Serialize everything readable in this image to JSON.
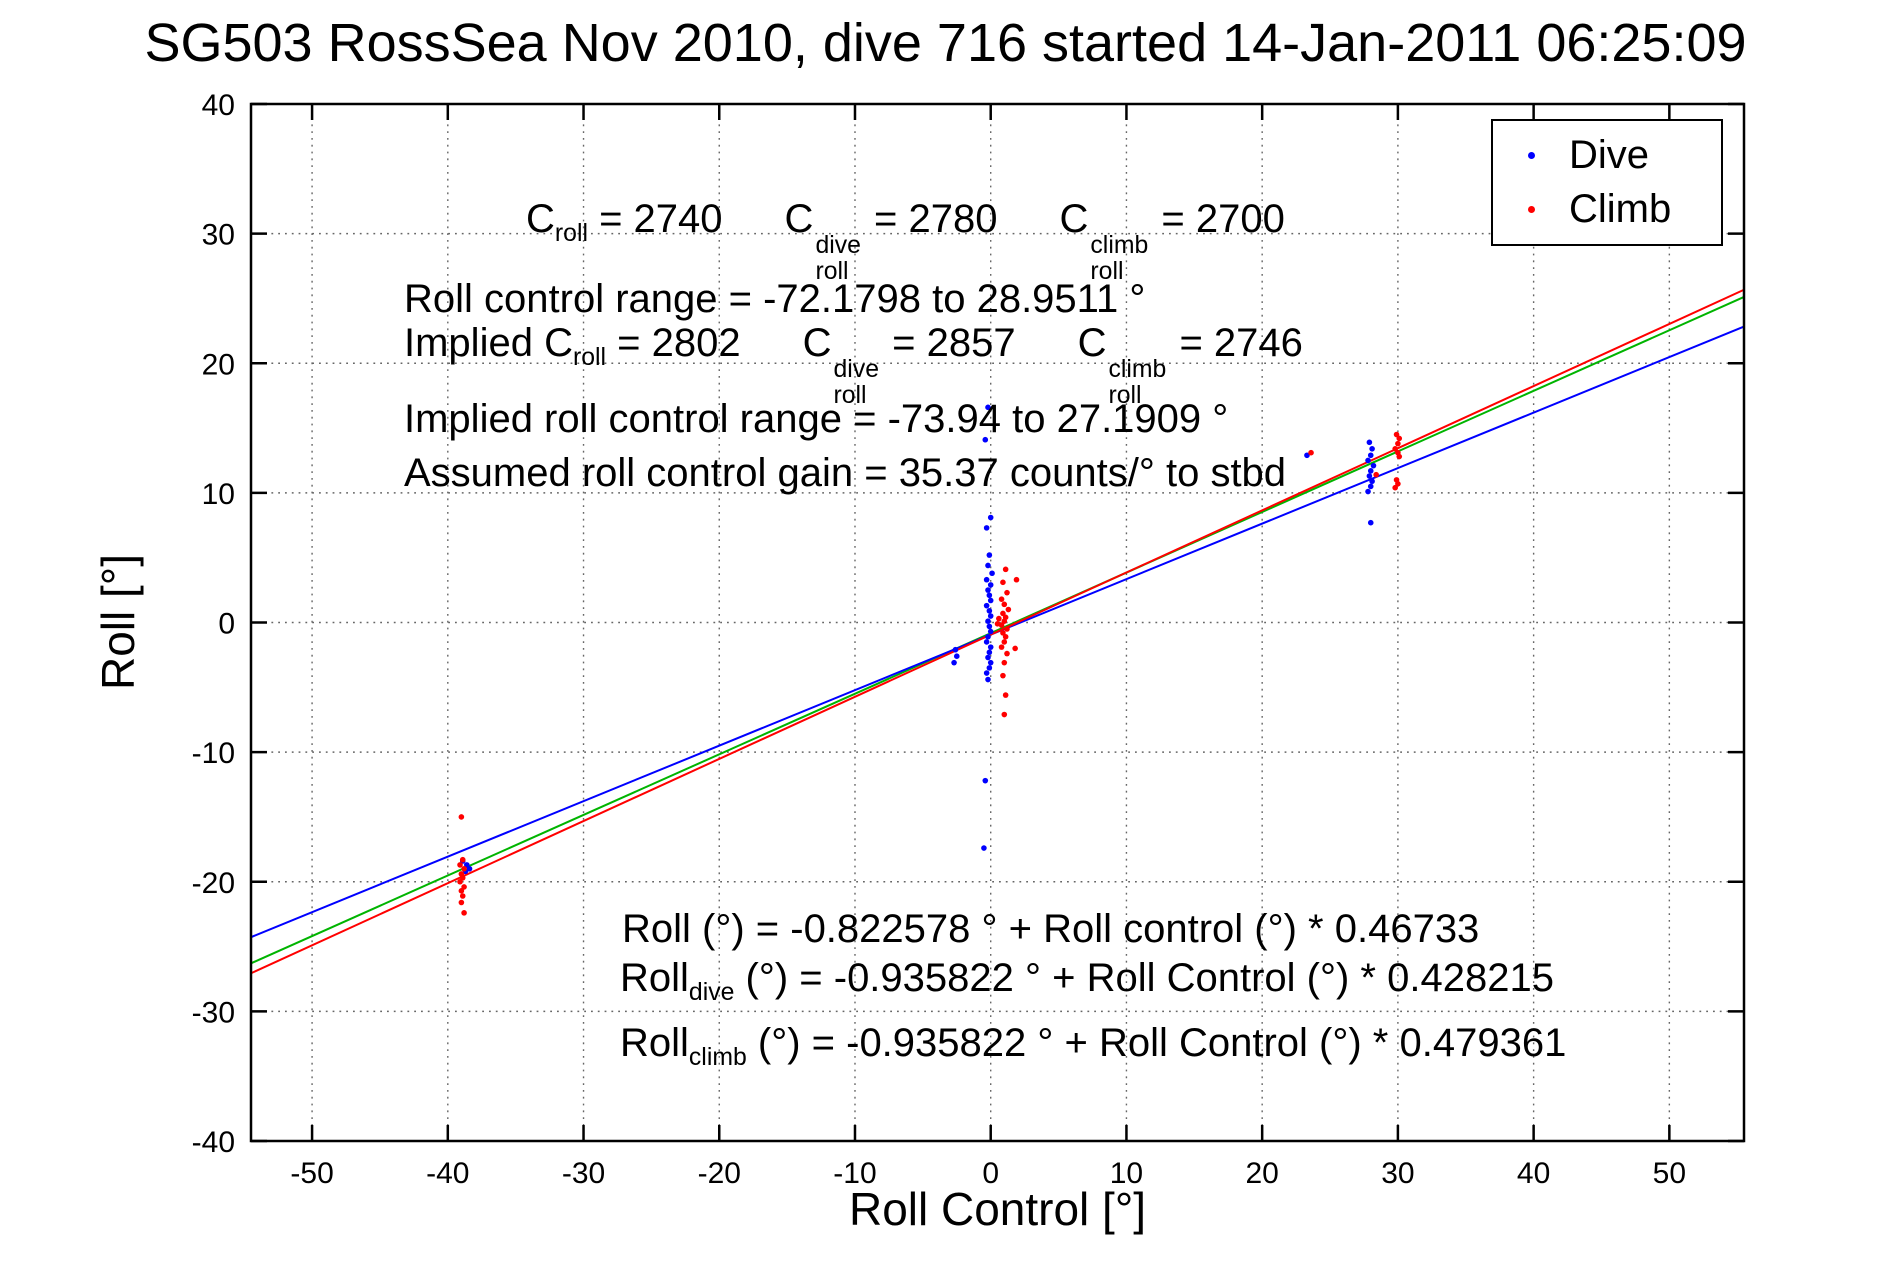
{
  "title": "SG503 RossSea Nov 2010, dive 716 started 14-Jan-2011 06:25:09",
  "legend": {
    "items": [
      {
        "label": "Dive",
        "color": "#0000ff"
      },
      {
        "label": "Climb",
        "color": "#ff0000"
      }
    ]
  },
  "annotations": {
    "c_line": [
      {
        "base": "C",
        "sub": "roll",
        "sup": "",
        "rest": " = 2740"
      },
      {
        "base": "C",
        "sub": "roll",
        "sup": "dive",
        "rest": " = 2780"
      },
      {
        "base": "C",
        "sub": "roll",
        "sup": "climb",
        "rest": " = 2700"
      }
    ],
    "roll_control_range": "Roll control range = -72.1798 to 28.9511 °",
    "implied_prefix": "Implied ",
    "implied_c_line": [
      {
        "base": "C",
        "sub": "roll",
        "sup": "",
        "rest": " = 2802"
      },
      {
        "base": "C",
        "sub": "roll",
        "sup": "dive",
        "rest": " = 2857"
      },
      {
        "base": "C",
        "sub": "roll",
        "sup": "climb",
        "rest": " = 2746"
      }
    ],
    "implied_range": "Implied roll control range = -73.94 to 27.1909 °",
    "gain": "Assumed roll control gain = 35.37 counts/° to stbd",
    "fits": [
      {
        "base": "Roll",
        "sub": "",
        "rest": " (°) = -0.822578 ° + Roll control (°) * 0.46733"
      },
      {
        "base": "Roll",
        "sub": "dive",
        "rest": " (°) = -0.935822 ° + Roll Control (°) * 0.428215"
      },
      {
        "base": "Roll",
        "sub": "climb",
        "rest": " (°) = -0.935822 ° + Roll Control (°) * 0.479361"
      }
    ]
  },
  "chart_data": {
    "type": "scatter",
    "title": "SG503 RossSea Nov 2010, dive 716 started 14-Jan-2011 06:25:09",
    "xlabel": "Roll Control [°]",
    "ylabel": "Roll [°]",
    "xlim": [
      -54.5,
      55.5
    ],
    "ylim": [
      -40,
      40
    ],
    "xticks": [
      -50,
      -40,
      -30,
      -20,
      -10,
      0,
      10,
      20,
      30,
      40,
      50
    ],
    "yticks": [
      -40,
      -30,
      -20,
      -10,
      0,
      10,
      20,
      30,
      40
    ],
    "grid": true,
    "legend_position": "top-right",
    "series": [
      {
        "name": "Dive",
        "color": "#0000ff",
        "points": [
          [
            -38.9,
            -18.4
          ],
          [
            -38.6,
            -18.7
          ],
          [
            -38.4,
            -19.0
          ],
          [
            -38.7,
            -19.2
          ],
          [
            -2.6,
            -2.1
          ],
          [
            -2.5,
            -2.6
          ],
          [
            -2.7,
            -3.1
          ],
          [
            -0.2,
            16.6
          ],
          [
            -0.4,
            14.1
          ],
          [
            0,
            8.1
          ],
          [
            -0.3,
            7.3
          ],
          [
            -0.1,
            5.2
          ],
          [
            -0.2,
            4.4
          ],
          [
            0.1,
            3.8
          ],
          [
            -0.3,
            3.3
          ],
          [
            0,
            2.9
          ],
          [
            -0.2,
            2.5
          ],
          [
            -0.1,
            2.1
          ],
          [
            0,
            1.7
          ],
          [
            -0.3,
            1.3
          ],
          [
            -0.1,
            0.9
          ],
          [
            0,
            0.5
          ],
          [
            -0.2,
            0.1
          ],
          [
            -0.1,
            -0.3
          ],
          [
            0,
            -0.7
          ],
          [
            -0.2,
            -1.1
          ],
          [
            -0.3,
            -1.5
          ],
          [
            0,
            -1.9
          ],
          [
            -0.1,
            -2.3
          ],
          [
            -0.2,
            -2.7
          ],
          [
            0,
            -3.1
          ],
          [
            -0.1,
            -3.5
          ],
          [
            -0.3,
            -3.9
          ],
          [
            -0.2,
            -4.4
          ],
          [
            -0.4,
            -12.2
          ],
          [
            -0.5,
            -17.4
          ],
          [
            23.3,
            12.9
          ],
          [
            27.9,
            13.9
          ],
          [
            28.1,
            13.4
          ],
          [
            28,
            12.9
          ],
          [
            27.8,
            12.5
          ],
          [
            28.2,
            12.1
          ],
          [
            28,
            11.7
          ],
          [
            27.9,
            11.3
          ],
          [
            28.1,
            10.9
          ],
          [
            28,
            10.5
          ],
          [
            27.8,
            10.1
          ],
          [
            28,
            7.7
          ]
        ]
      },
      {
        "name": "Climb",
        "color": "#ff0000",
        "points": [
          [
            -39,
            -15
          ],
          [
            -38.9,
            -18.3
          ],
          [
            -39.1,
            -18.7
          ],
          [
            -38.8,
            -19
          ],
          [
            -39,
            -19.4
          ],
          [
            -38.9,
            -19.7
          ],
          [
            -39.1,
            -20
          ],
          [
            -38.8,
            -20.4
          ],
          [
            -39,
            -20.7
          ],
          [
            -38.9,
            -21.1
          ],
          [
            -39,
            -21.6
          ],
          [
            -38.8,
            -22.4
          ],
          [
            0.5,
            -0.1
          ],
          [
            0.6,
            0.3
          ],
          [
            1.1,
            4.1
          ],
          [
            0.9,
            3.1
          ],
          [
            1.2,
            2.3
          ],
          [
            0.8,
            1.8
          ],
          [
            1,
            1.4
          ],
          [
            1.3,
            1
          ],
          [
            0.9,
            0.7
          ],
          [
            1.1,
            0.4
          ],
          [
            1,
            0.1
          ],
          [
            0.8,
            -0.2
          ],
          [
            1.2,
            -0.5
          ],
          [
            0.9,
            -0.8
          ],
          [
            1.1,
            -1.1
          ],
          [
            1,
            -1.5
          ],
          [
            0.8,
            -1.9
          ],
          [
            1.2,
            -2.4
          ],
          [
            1,
            -3.1
          ],
          [
            0.9,
            -4.1
          ],
          [
            1.1,
            -5.6
          ],
          [
            1,
            -7.1
          ],
          [
            1.9,
            3.3
          ],
          [
            1.8,
            -2
          ],
          [
            23.6,
            13.1
          ],
          [
            29.9,
            14.5
          ],
          [
            30.1,
            14.2
          ],
          [
            30,
            13.8
          ],
          [
            29.8,
            13.4
          ],
          [
            30,
            13.1
          ],
          [
            30.1,
            12.8
          ],
          [
            29.9,
            11
          ],
          [
            30,
            10.7
          ],
          [
            29.8,
            10.4
          ],
          [
            28.4,
            11.4
          ]
        ]
      }
    ],
    "fit_lines": [
      {
        "name": "combined",
        "color": "#00b400",
        "intercept": -0.822578,
        "slope": 0.46733
      },
      {
        "name": "dive",
        "color": "#0000ff",
        "intercept": -0.935822,
        "slope": 0.428215
      },
      {
        "name": "climb",
        "color": "#ff0000",
        "intercept": -0.935822,
        "slope": 0.479361
      }
    ]
  }
}
